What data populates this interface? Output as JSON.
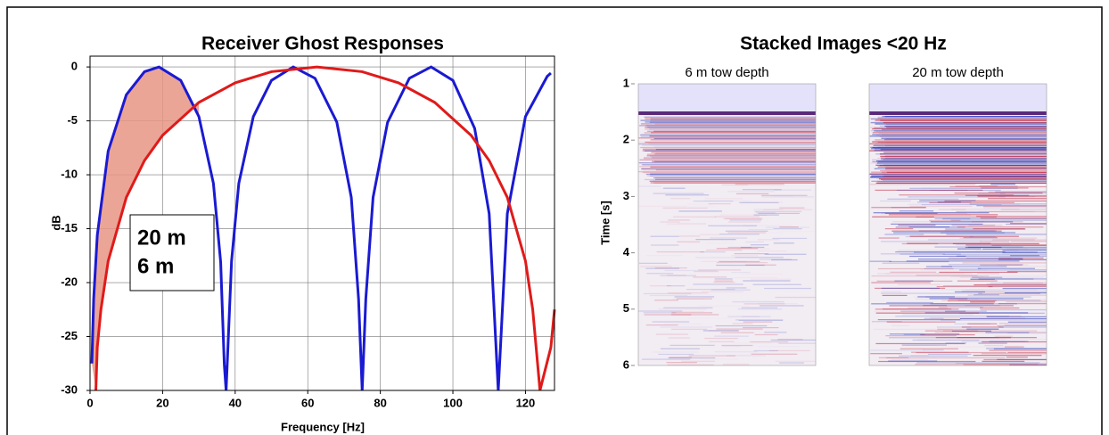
{
  "chart_data": [
    {
      "type": "line",
      "title": "Receiver Ghost Responses",
      "x_label": "Frequency [Hz]",
      "y_label": "dB",
      "xlim": [
        0,
        128
      ],
      "ylim": [
        -30,
        1
      ],
      "xticks": [
        0,
        20,
        40,
        60,
        80,
        100,
        120
      ],
      "yticks": [
        0,
        -5,
        -10,
        -15,
        -20,
        -25,
        -30
      ],
      "grid": true,
      "legend": "lower left",
      "series": [
        {
          "name": "20 m",
          "color": "#1a1ad2",
          "x": [
            0.5,
            1,
            2,
            5,
            10,
            15,
            19,
            25,
            30,
            34,
            36,
            37,
            37.5,
            39,
            41,
            45,
            50,
            56,
            62,
            68,
            72,
            74,
            75,
            76,
            78,
            82,
            88,
            94,
            100,
            106,
            110,
            112.5,
            115,
            120,
            126,
            127
          ],
          "values": [
            -27.5,
            -21.5,
            -15.6,
            -7.8,
            -2.58,
            -0.44,
            0,
            -1.25,
            -4.61,
            -10.8,
            -18.1,
            -27.6,
            -30,
            -18,
            -10.8,
            -4.61,
            -1.25,
            0,
            -1.05,
            -5.11,
            -12.1,
            -21.5,
            -30,
            -21.5,
            -12.1,
            -5.14,
            -1.05,
            0,
            -1.25,
            -5.7,
            -13.6,
            -30,
            -13.6,
            -4.6,
            -0.87,
            -0.57
          ]
        },
        {
          "name": "6 m",
          "color": "#e01a1a",
          "x": [
            1.6,
            2,
            3,
            5,
            10,
            15,
            20,
            30,
            40,
            50,
            62.5,
            75,
            85,
            95,
            105,
            110,
            115,
            120,
            122,
            124,
            127,
            128
          ],
          "values": [
            -30,
            -26,
            -22.5,
            -18,
            -12.1,
            -8.68,
            -6.34,
            -3.29,
            -1.47,
            -0.44,
            0,
            -0.44,
            -1.47,
            -3.29,
            -6.34,
            -8.68,
            -12.1,
            -18,
            -22.5,
            -30,
            -26,
            -22.5
          ]
        }
      ]
    },
    {
      "type": "image-panels",
      "title": "Stacked Images <20 Hz",
      "y_label": "Time [s]",
      "ylim": [
        1,
        6
      ],
      "yticks": [
        1,
        2,
        3,
        4,
        5,
        6
      ],
      "panels": [
        {
          "label": "6 m tow depth"
        },
        {
          "label": "20 m tow depth"
        }
      ]
    }
  ]
}
